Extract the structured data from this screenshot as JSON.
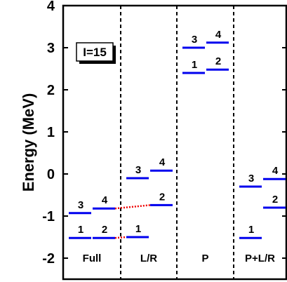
{
  "chart_data": {
    "type": "level-scheme",
    "ylabel": "Energy (MeV)",
    "ylim": [
      -2.5,
      4
    ],
    "yticks": [
      -2,
      -1,
      0,
      1,
      2,
      3,
      4
    ],
    "ytick_labels": [
      "-2",
      "-1",
      "0",
      "1",
      "2",
      "3",
      "4"
    ],
    "annotation": "I=15",
    "level_color": "#0000ee",
    "connector_color": "#ee0000",
    "panels": [
      {
        "name": "Full",
        "levels": [
          {
            "label": "1",
            "col": 0,
            "energy": -1.52
          },
          {
            "label": "2",
            "col": 1,
            "energy": -1.52
          },
          {
            "label": "3",
            "col": 0,
            "energy": -0.93
          },
          {
            "label": "4",
            "col": 1,
            "energy": -0.82
          }
        ]
      },
      {
        "name": "L/R",
        "levels": [
          {
            "label": "1",
            "col": 0,
            "energy": -1.5
          },
          {
            "label": "2",
            "col": 1,
            "energy": -0.74
          },
          {
            "label": "3",
            "col": 0,
            "energy": -0.1
          },
          {
            "label": "4",
            "col": 1,
            "energy": 0.08
          }
        ]
      },
      {
        "name": "P",
        "levels": [
          {
            "label": "1",
            "col": 0,
            "energy": 2.4
          },
          {
            "label": "2",
            "col": 1,
            "energy": 2.48
          },
          {
            "label": "3",
            "col": 0,
            "energy": 3.0
          },
          {
            "label": "4",
            "col": 1,
            "energy": 3.12
          }
        ]
      },
      {
        "name": "P+L/R",
        "levels": [
          {
            "label": "1",
            "col": 0,
            "energy": -1.52
          },
          {
            "label": "2",
            "col": 1,
            "energy": -0.8
          },
          {
            "label": "3",
            "col": 0,
            "energy": -0.3
          },
          {
            "label": "4",
            "col": 1,
            "energy": -0.12
          }
        ]
      }
    ],
    "connectors": [
      {
        "from_panel": 0,
        "from_level": "2",
        "to_panel": 1,
        "to_level": "1"
      },
      {
        "from_panel": 0,
        "from_level": "4",
        "to_panel": 1,
        "to_level": "2"
      }
    ]
  }
}
